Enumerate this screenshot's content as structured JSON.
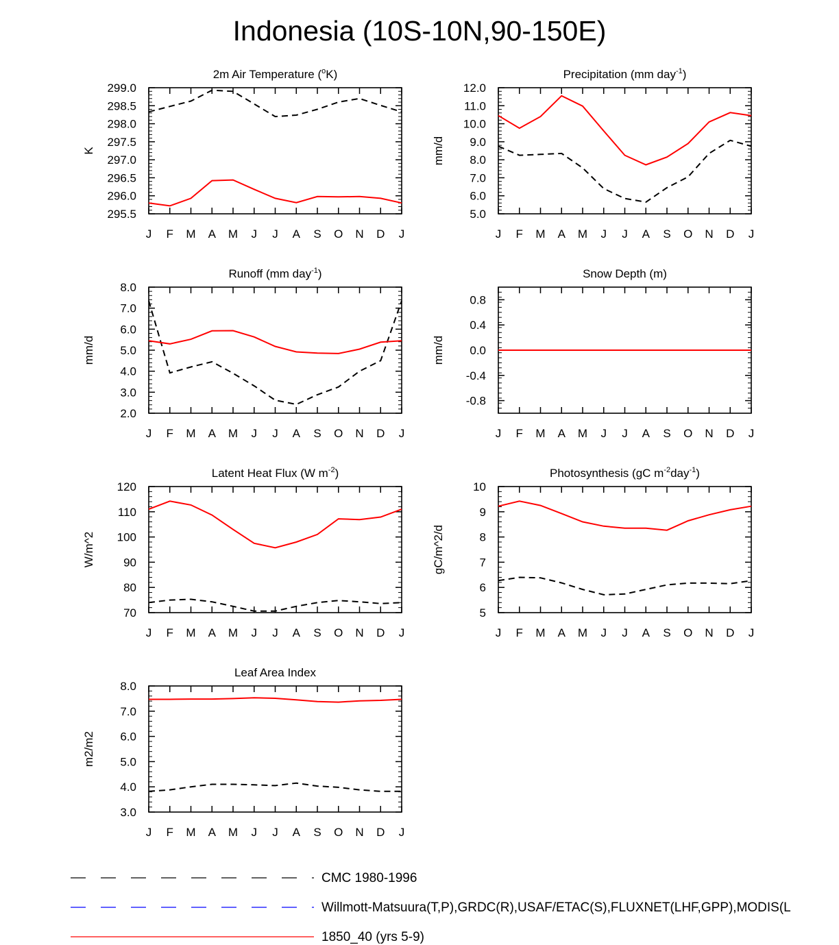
{
  "figure": {
    "title": "Indonesia (10S-10N,90-150E)"
  },
  "legend": {
    "entries": [
      {
        "label": "CMC 1980-1996",
        "color": "#000000",
        "style": "dashed"
      },
      {
        "label": "Willmott-Matsuura(T,P),GRDC(R),USAF/ETAC(S),FLUXNET(LHF,GPP),MODIS(L",
        "color": "#0000ff",
        "style": "dashed"
      },
      {
        "label": "1850_40 (yrs 5-9)",
        "color": "#ff0000",
        "style": "solid"
      }
    ]
  },
  "colors": {
    "model": "#ff0000",
    "obs": "#000000"
  },
  "chart_data": [
    {
      "type": "line",
      "title": "2m Air Temperature (",
      "title_sup": "o",
      "title_after": "K)",
      "ylabel": "K",
      "ylim": [
        295.5,
        299.0
      ],
      "yticks": [
        295.5,
        296.0,
        296.5,
        297.0,
        297.5,
        298.0,
        298.5,
        299.0
      ],
      "ytick_labels": [
        "295.5",
        "296.0",
        "296.5",
        "297.0",
        "297.5",
        "298.0",
        "298.5",
        "299.0"
      ],
      "categories": [
        "J",
        "F",
        "M",
        "A",
        "M",
        "J",
        "J",
        "A",
        "S",
        "O",
        "N",
        "D",
        "J"
      ],
      "series": [
        {
          "name": "CMC 1980-1996",
          "style": "dashed",
          "values": [
            298.33,
            298.48,
            298.63,
            298.93,
            298.9,
            298.55,
            298.2,
            298.24,
            298.4,
            298.6,
            298.7,
            298.51,
            298.33
          ]
        },
        {
          "name": "1850_40 (yrs 5-9)",
          "style": "solid",
          "values": [
            295.8,
            295.72,
            295.93,
            296.42,
            296.44,
            296.18,
            295.93,
            295.81,
            295.98,
            295.97,
            295.98,
            295.93,
            295.8
          ]
        }
      ]
    },
    {
      "type": "line",
      "title": "Precipitation (mm day",
      "title_sup": "-1",
      "title_after": ")",
      "ylabel": "mm/d",
      "ylim": [
        5.0,
        12.0
      ],
      "yticks": [
        5,
        6,
        7,
        8,
        9,
        10,
        11,
        12
      ],
      "ytick_labels": [
        "5.0",
        "6.0",
        "7.0",
        "8.0",
        "9.0",
        "10.0",
        "11.0",
        "12.0"
      ],
      "categories": [
        "J",
        "F",
        "M",
        "A",
        "M",
        "J",
        "J",
        "A",
        "S",
        "O",
        "N",
        "D",
        "J"
      ],
      "series": [
        {
          "name": "CMC 1980-1996",
          "style": "dashed",
          "values": [
            8.75,
            8.25,
            8.3,
            8.35,
            7.55,
            6.4,
            5.85,
            5.65,
            6.45,
            7.05,
            8.35,
            9.08,
            8.75
          ]
        },
        {
          "name": "1850_40 (yrs 5-9)",
          "style": "solid",
          "values": [
            10.45,
            9.75,
            10.4,
            11.55,
            10.98,
            9.6,
            8.25,
            7.72,
            8.15,
            8.9,
            10.1,
            10.62,
            10.45
          ]
        }
      ]
    },
    {
      "type": "line",
      "title": "Runoff (mm day",
      "title_sup": "-1",
      "title_after": ")",
      "ylabel": "mm/d",
      "ylim": [
        2.0,
        8.0
      ],
      "yticks": [
        2,
        3,
        4,
        5,
        6,
        7,
        8
      ],
      "ytick_labels": [
        "2.0",
        "3.0",
        "4.0",
        "5.0",
        "6.0",
        "7.0",
        "8.0"
      ],
      "categories": [
        "J",
        "F",
        "M",
        "A",
        "M",
        "J",
        "J",
        "A",
        "S",
        "O",
        "N",
        "D",
        "J"
      ],
      "series": [
        {
          "name": "CMC 1980-1996",
          "style": "dashed",
          "values": [
            7.35,
            3.92,
            4.2,
            4.45,
            3.9,
            3.3,
            2.62,
            2.42,
            2.88,
            3.25,
            4.0,
            4.5,
            7.35
          ]
        },
        {
          "name": "1850_40 (yrs 5-9)",
          "style": "solid",
          "values": [
            5.45,
            5.3,
            5.52,
            5.92,
            5.93,
            5.63,
            5.18,
            4.92,
            4.86,
            4.84,
            5.05,
            5.38,
            5.45
          ]
        }
      ]
    },
    {
      "type": "line",
      "title": "Snow Depth (m)",
      "title_sup": "",
      "title_after": "",
      "ylabel": "mm/d",
      "ylim": [
        -1.0,
        1.0
      ],
      "yticks": [
        -0.8,
        -0.4,
        0.0,
        0.4,
        0.8
      ],
      "ytick_labels": [
        "-0.8",
        "-0.4",
        "0.0",
        "0.4",
        "0.8"
      ],
      "categories": [
        "J",
        "F",
        "M",
        "A",
        "M",
        "J",
        "J",
        "A",
        "S",
        "O",
        "N",
        "D",
        "J"
      ],
      "series": [
        {
          "name": "CMC 1980-1996",
          "style": "dashed",
          "values": [
            0,
            0,
            0,
            0,
            0,
            0,
            0,
            0,
            0,
            0,
            0,
            0,
            0
          ]
        },
        {
          "name": "1850_40 (yrs 5-9)",
          "style": "solid",
          "values": [
            0,
            0,
            0,
            0,
            0,
            0,
            0,
            0,
            0,
            0,
            0,
            0,
            0
          ]
        }
      ]
    },
    {
      "type": "line",
      "title": "Latent Heat Flux (W m",
      "title_sup": "-2",
      "title_after": ")",
      "ylabel": "W/m^2",
      "ylim": [
        70,
        120
      ],
      "yticks": [
        70,
        80,
        90,
        100,
        110,
        120
      ],
      "ytick_labels": [
        "70",
        "80",
        "90",
        "100",
        "110",
        "120"
      ],
      "categories": [
        "J",
        "F",
        "M",
        "A",
        "M",
        "J",
        "J",
        "A",
        "S",
        "O",
        "N",
        "D",
        "J"
      ],
      "series": [
        {
          "name": "CMC 1980-1996",
          "style": "dashed",
          "values": [
            74.0,
            75.0,
            75.3,
            74.3,
            72.5,
            70.6,
            70.6,
            72.5,
            74.0,
            74.8,
            74.3,
            73.6,
            74.0
          ]
        },
        {
          "name": "1850_40 (yrs 5-9)",
          "style": "solid",
          "values": [
            111.0,
            114.2,
            112.7,
            108.7,
            103.0,
            97.5,
            95.7,
            98.0,
            101.0,
            107.2,
            106.9,
            107.9,
            111.0
          ]
        }
      ]
    },
    {
      "type": "line",
      "title": "Photosynthesis (gC m",
      "title_sup": "-2",
      "title_after": "day",
      "title_sup2": "-1",
      "title_after2": ")",
      "ylabel": "gC/m^2/d",
      "ylim": [
        5,
        10
      ],
      "yticks": [
        5,
        6,
        7,
        8,
        9,
        10
      ],
      "ytick_labels": [
        "5",
        "6",
        "7",
        "8",
        "9",
        "10"
      ],
      "categories": [
        "J",
        "F",
        "M",
        "A",
        "M",
        "J",
        "J",
        "A",
        "S",
        "O",
        "N",
        "D",
        "J"
      ],
      "series": [
        {
          "name": "CMC 1980-1996",
          "style": "dashed",
          "values": [
            6.27,
            6.4,
            6.38,
            6.18,
            5.92,
            5.71,
            5.74,
            5.92,
            6.1,
            6.17,
            6.17,
            6.15,
            6.27
          ]
        },
        {
          "name": "1850_40 (yrs 5-9)",
          "style": "solid",
          "values": [
            9.22,
            9.42,
            9.25,
            8.93,
            8.6,
            8.43,
            8.35,
            8.35,
            8.27,
            8.64,
            8.88,
            9.08,
            9.22
          ]
        }
      ]
    },
    {
      "type": "line",
      "title": "Leaf Area Index",
      "title_sup": "",
      "title_after": "",
      "ylabel": "m2/m2",
      "ylim": [
        3.0,
        8.0
      ],
      "yticks": [
        3,
        4,
        5,
        6,
        7,
        8
      ],
      "ytick_labels": [
        "3.0",
        "4.0",
        "5.0",
        "6.0",
        "7.0",
        "8.0"
      ],
      "categories": [
        "J",
        "F",
        "M",
        "A",
        "M",
        "J",
        "J",
        "A",
        "S",
        "O",
        "N",
        "D",
        "J"
      ],
      "series": [
        {
          "name": "CMC 1980-1996",
          "style": "dashed",
          "values": [
            3.82,
            3.88,
            4.0,
            4.1,
            4.1,
            4.08,
            4.05,
            4.15,
            4.03,
            3.98,
            3.88,
            3.82,
            3.82
          ]
        },
        {
          "name": "1850_40 (yrs 5-9)",
          "style": "solid",
          "values": [
            7.47,
            7.47,
            7.48,
            7.48,
            7.5,
            7.53,
            7.51,
            7.45,
            7.38,
            7.36,
            7.41,
            7.43,
            7.47
          ]
        }
      ]
    }
  ]
}
